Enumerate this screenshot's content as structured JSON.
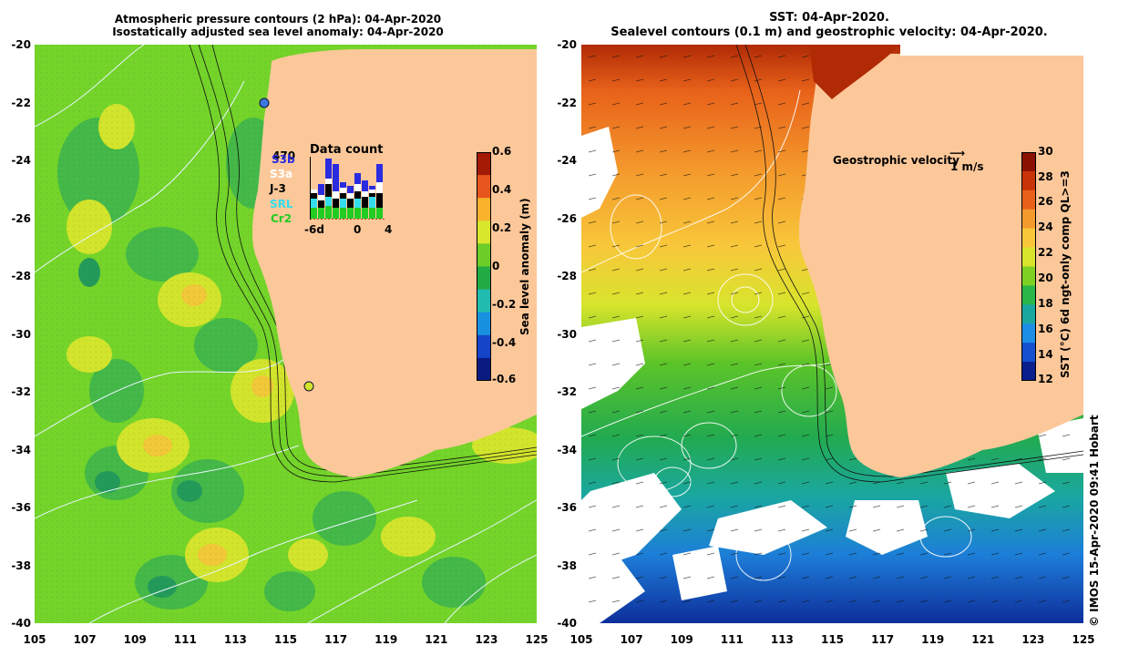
{
  "left_panel": {
    "title_line1": "Atmospheric pressure contours (2 hPa): 04-Apr-2020",
    "title_line2": "Isostatically adjusted sea level anomaly: 04-Apr-2020",
    "colorbar": {
      "label": "Sea level anomaly (m)",
      "ticks": [
        "0.6",
        "0.4",
        "0.2",
        "0",
        "-0.2",
        "-0.4",
        "-0.6"
      ],
      "colors": [
        "#a31a05",
        "#e8551c",
        "#f8b22c",
        "#d8e62c",
        "#6ccc28",
        "#22aa44",
        "#22bbb0",
        "#1890e0",
        "#1444c8",
        "#0a1a80"
      ]
    },
    "data_count": {
      "title": "Data count",
      "max_label": "470",
      "satellites": [
        {
          "name": "S3b",
          "color": "#2b2be0"
        },
        {
          "name": "S3a",
          "color": "#ffffff"
        },
        {
          "name": "J-3",
          "color": "#000000"
        },
        {
          "name": "SRL",
          "color": "#33ddee"
        },
        {
          "name": "Cr2",
          "color": "#22cc22"
        }
      ],
      "x_ticks": [
        "-6d",
        "0",
        "4"
      ]
    }
  },
  "right_panel": {
    "title_line1": "SST: 04-Apr-2020.",
    "title_line2": "Sealevel contours (0.1 m) and geostrophic velocity: 04-Apr-2020.",
    "velocity_label": "Geostrophic velocity",
    "velocity_scale": "1 m/s",
    "colorbar": {
      "label": "SST (°C) 6d ngt-only comp QL>=3",
      "ticks": [
        "30",
        "28",
        "26",
        "24",
        "22",
        "20",
        "18",
        "16",
        "14",
        "12"
      ],
      "colors": [
        "#8b1202",
        "#c83408",
        "#e8621a",
        "#f49a2c",
        "#f8c83a",
        "#d8e42c",
        "#7ed022",
        "#2ab648",
        "#1aa7a0",
        "#1d8ee6",
        "#1450d0",
        "#0a1e8c"
      ]
    }
  },
  "axes": {
    "lat_ticks": [
      "-20",
      "-22",
      "-24",
      "-26",
      "-28",
      "-30",
      "-32",
      "-34",
      "-36",
      "-38",
      "-40"
    ],
    "lon_ticks": [
      "105",
      "107",
      "109",
      "111",
      "113",
      "115",
      "117",
      "119",
      "121",
      "123",
      "125"
    ]
  },
  "credit": "© IMOS 15-Apr-2020 09:41 Hobart",
  "colors": {
    "land": "#fcc89a",
    "ocean_green": "#74d42a",
    "warm_yellow": "#dce82c",
    "sst_warm": "#f0a030",
    "sst_cool": "#1d7fd8"
  }
}
